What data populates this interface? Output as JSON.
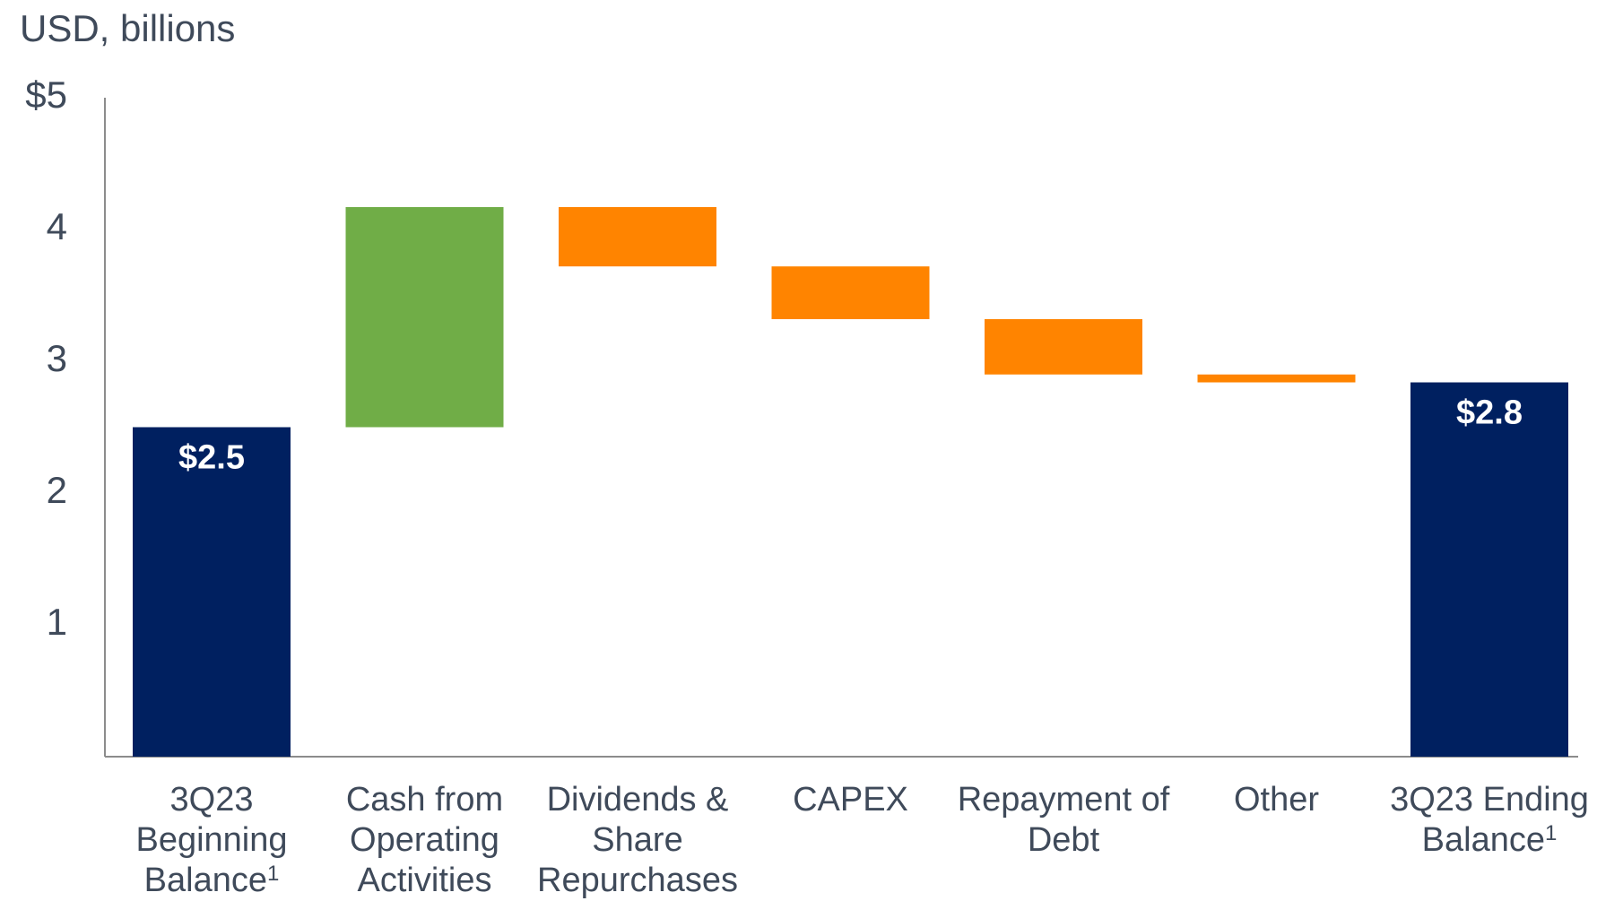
{
  "chart_data": {
    "type": "waterfall",
    "subtitle": "USD, billions",
    "categories": [
      "3Q23 Beginning Balance",
      "Cash from Operating Activities",
      "Dividends & Share Repurchases",
      "CAPEX",
      "Repayment of Debt",
      "Other",
      "3Q23 Ending Balance"
    ],
    "category_footnotes": [
      "1",
      null,
      null,
      null,
      null,
      null,
      "1"
    ],
    "values": [
      2.5,
      1.67,
      -0.45,
      -0.4,
      -0.42,
      -0.06,
      2.84
    ],
    "kinds": [
      "total",
      "delta",
      "delta",
      "delta",
      "delta",
      "delta",
      "total"
    ],
    "value_labels": [
      "$2.5",
      null,
      null,
      null,
      null,
      null,
      "$2.8"
    ],
    "colors": {
      "total": "#002060",
      "increase": "#70ad47",
      "decrease": "#ff8400"
    },
    "ylim": [
      0,
      5
    ],
    "yticks": [
      1,
      2,
      3,
      4,
      {
        "value": 5,
        "label": "$5"
      }
    ]
  }
}
